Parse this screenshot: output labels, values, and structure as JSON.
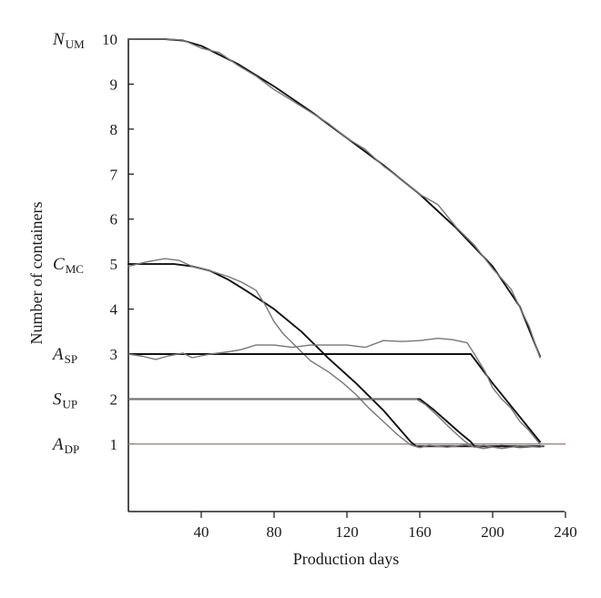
{
  "chart_data": {
    "type": "line",
    "xlabel": "Production days",
    "ylabel": "Number of containers",
    "xlim": [
      0,
      240
    ],
    "ylim": [
      -0.5,
      10
    ],
    "xticks": [
      40,
      80,
      120,
      160,
      200,
      240
    ],
    "yticks": [
      1,
      2,
      3,
      4,
      5,
      6,
      7,
      8,
      9,
      10
    ],
    "grid": false,
    "level_labels": [
      {
        "main": "N",
        "sub": "UM",
        "value": 10
      },
      {
        "main": "C",
        "sub": "MC",
        "value": 5
      },
      {
        "main": "A",
        "sub": "SP",
        "value": 3
      },
      {
        "main": "S",
        "sub": "UP",
        "value": 2
      },
      {
        "main": "A",
        "sub": "DP",
        "value": 1
      }
    ],
    "reference_line": {
      "y": 1,
      "x": [
        0,
        240
      ],
      "color": "#a08080"
    },
    "series": [
      {
        "color": "#111111",
        "style": "model",
        "points": [
          [
            0,
            10
          ],
          [
            20,
            10
          ],
          [
            30,
            9.97
          ],
          [
            40,
            9.85
          ],
          [
            60,
            9.45
          ],
          [
            80,
            8.95
          ],
          [
            100,
            8.4
          ],
          [
            120,
            7.8
          ],
          [
            140,
            7.2
          ],
          [
            160,
            6.55
          ],
          [
            180,
            5.8
          ],
          [
            200,
            4.95
          ],
          [
            215,
            4.05
          ],
          [
            226,
            2.95
          ]
        ]
      },
      {
        "color": "#777777",
        "style": "simulated",
        "points": [
          [
            0,
            10
          ],
          [
            20,
            10
          ],
          [
            30,
            9.98
          ],
          [
            40,
            9.8
          ],
          [
            50,
            9.7
          ],
          [
            60,
            9.42
          ],
          [
            70,
            9.18
          ],
          [
            80,
            8.88
          ],
          [
            90,
            8.63
          ],
          [
            100,
            8.38
          ],
          [
            110,
            8.12
          ],
          [
            120,
            7.8
          ],
          [
            130,
            7.55
          ],
          [
            140,
            7.18
          ],
          [
            150,
            6.88
          ],
          [
            160,
            6.55
          ],
          [
            170,
            6.32
          ],
          [
            180,
            5.82
          ],
          [
            190,
            5.42
          ],
          [
            200,
            4.9
          ],
          [
            210,
            4.45
          ],
          [
            220,
            3.62
          ],
          [
            226,
            2.92
          ]
        ]
      },
      {
        "color": "#111111",
        "style": "model",
        "points": [
          [
            0,
            5
          ],
          [
            25,
            5
          ],
          [
            35,
            4.95
          ],
          [
            45,
            4.85
          ],
          [
            55,
            4.65
          ],
          [
            65,
            4.4
          ],
          [
            80,
            4
          ],
          [
            95,
            3.5
          ],
          [
            110,
            2.9
          ],
          [
            125,
            2.35
          ],
          [
            140,
            1.75
          ],
          [
            155,
            1.05
          ],
          [
            158,
            0.95
          ],
          [
            228,
            0.95
          ]
        ]
      },
      {
        "color": "#777777",
        "style": "simulated",
        "points": [
          [
            0,
            4.95
          ],
          [
            10,
            5.05
          ],
          [
            20,
            5.12
          ],
          [
            28,
            5.08
          ],
          [
            35,
            4.95
          ],
          [
            45,
            4.85
          ],
          [
            55,
            4.72
          ],
          [
            62,
            4.6
          ],
          [
            70,
            4.42
          ],
          [
            75,
            4.1
          ],
          [
            80,
            3.72
          ],
          [
            85,
            3.45
          ],
          [
            90,
            3.25
          ],
          [
            100,
            2.85
          ],
          [
            110,
            2.6
          ],
          [
            118,
            2.35
          ],
          [
            125,
            2.1
          ],
          [
            132,
            1.8
          ],
          [
            140,
            1.5
          ],
          [
            148,
            1.2
          ],
          [
            155,
            0.98
          ],
          [
            160,
            0.92
          ],
          [
            165,
            0.97
          ],
          [
            175,
            0.93
          ],
          [
            185,
            0.98
          ],
          [
            195,
            0.9
          ],
          [
            205,
            0.97
          ],
          [
            215,
            0.92
          ],
          [
            228,
            0.96
          ]
        ]
      },
      {
        "color": "#111111",
        "style": "model",
        "points": [
          [
            0,
            3
          ],
          [
            188,
            3
          ],
          [
            200,
            2.35
          ],
          [
            210,
            1.85
          ],
          [
            218,
            1.45
          ],
          [
            226,
            1.05
          ]
        ]
      },
      {
        "color": "#777777",
        "style": "simulated",
        "points": [
          [
            0,
            3
          ],
          [
            8,
            2.95
          ],
          [
            15,
            2.88
          ],
          [
            22,
            2.96
          ],
          [
            30,
            3.02
          ],
          [
            35,
            2.92
          ],
          [
            45,
            3
          ],
          [
            55,
            3.05
          ],
          [
            62,
            3.1
          ],
          [
            70,
            3.2
          ],
          [
            80,
            3.2
          ],
          [
            90,
            3.15
          ],
          [
            100,
            3.2
          ],
          [
            110,
            3.2
          ],
          [
            120,
            3.2
          ],
          [
            130,
            3.15
          ],
          [
            140,
            3.3
          ],
          [
            150,
            3.28
          ],
          [
            160,
            3.3
          ],
          [
            170,
            3.35
          ],
          [
            178,
            3.32
          ],
          [
            186,
            3.25
          ],
          [
            190,
            3
          ],
          [
            196,
            2.6
          ],
          [
            200,
            2.25
          ],
          [
            205,
            2
          ],
          [
            210,
            1.8
          ],
          [
            215,
            1.5
          ],
          [
            220,
            1.3
          ],
          [
            226,
            1
          ]
        ]
      },
      {
        "color": "#111111",
        "style": "model",
        "points": [
          [
            0,
            2
          ],
          [
            160,
            2
          ],
          [
            168,
            1.75
          ],
          [
            175,
            1.5
          ],
          [
            182,
            1.25
          ],
          [
            188,
            1.05
          ],
          [
            190,
            0.95
          ],
          [
            226,
            0.95
          ]
        ]
      },
      {
        "color": "#777777",
        "style": "simulated",
        "points": [
          [
            0,
            2
          ],
          [
            158,
            2
          ],
          [
            163,
            1.88
          ],
          [
            170,
            1.62
          ],
          [
            178,
            1.3
          ],
          [
            185,
            1.05
          ],
          [
            190,
            0.93
          ],
          [
            195,
            0.97
          ],
          [
            205,
            0.9
          ],
          [
            215,
            0.96
          ],
          [
            226,
            0.93
          ]
        ]
      }
    ]
  }
}
